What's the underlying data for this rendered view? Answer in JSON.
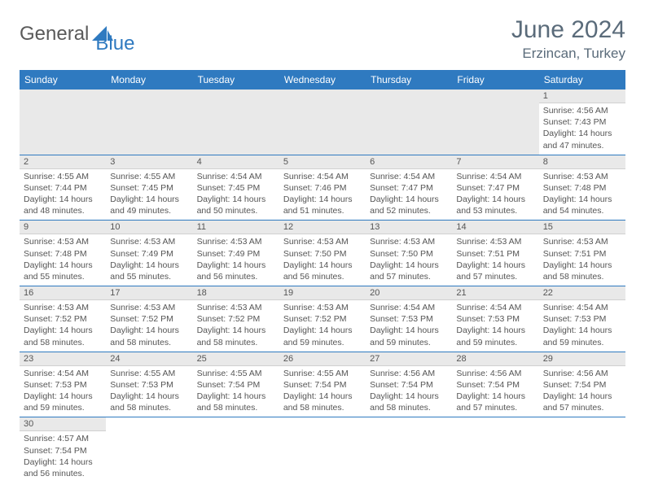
{
  "logo": {
    "general": "General",
    "blue": "Blue"
  },
  "title": "June 2024",
  "location": "Erzincan, Turkey",
  "weekdays": [
    "Sunday",
    "Monday",
    "Tuesday",
    "Wednesday",
    "Thursday",
    "Friday",
    "Saturday"
  ],
  "colors": {
    "header_bg": "#2f7ac0",
    "header_text": "#ffffff",
    "daynum_bg": "#e9e9e9",
    "border": "#2f7ac0",
    "text": "#555555",
    "title_text": "#5a6b7a"
  },
  "grid": [
    [
      null,
      null,
      null,
      null,
      null,
      null,
      {
        "day": "1",
        "sunrise": "Sunrise: 4:56 AM",
        "sunset": "Sunset: 7:43 PM",
        "daylight1": "Daylight: 14 hours",
        "daylight2": "and 47 minutes."
      }
    ],
    [
      {
        "day": "2",
        "sunrise": "Sunrise: 4:55 AM",
        "sunset": "Sunset: 7:44 PM",
        "daylight1": "Daylight: 14 hours",
        "daylight2": "and 48 minutes."
      },
      {
        "day": "3",
        "sunrise": "Sunrise: 4:55 AM",
        "sunset": "Sunset: 7:45 PM",
        "daylight1": "Daylight: 14 hours",
        "daylight2": "and 49 minutes."
      },
      {
        "day": "4",
        "sunrise": "Sunrise: 4:54 AM",
        "sunset": "Sunset: 7:45 PM",
        "daylight1": "Daylight: 14 hours",
        "daylight2": "and 50 minutes."
      },
      {
        "day": "5",
        "sunrise": "Sunrise: 4:54 AM",
        "sunset": "Sunset: 7:46 PM",
        "daylight1": "Daylight: 14 hours",
        "daylight2": "and 51 minutes."
      },
      {
        "day": "6",
        "sunrise": "Sunrise: 4:54 AM",
        "sunset": "Sunset: 7:47 PM",
        "daylight1": "Daylight: 14 hours",
        "daylight2": "and 52 minutes."
      },
      {
        "day": "7",
        "sunrise": "Sunrise: 4:54 AM",
        "sunset": "Sunset: 7:47 PM",
        "daylight1": "Daylight: 14 hours",
        "daylight2": "and 53 minutes."
      },
      {
        "day": "8",
        "sunrise": "Sunrise: 4:53 AM",
        "sunset": "Sunset: 7:48 PM",
        "daylight1": "Daylight: 14 hours",
        "daylight2": "and 54 minutes."
      }
    ],
    [
      {
        "day": "9",
        "sunrise": "Sunrise: 4:53 AM",
        "sunset": "Sunset: 7:48 PM",
        "daylight1": "Daylight: 14 hours",
        "daylight2": "and 55 minutes."
      },
      {
        "day": "10",
        "sunrise": "Sunrise: 4:53 AM",
        "sunset": "Sunset: 7:49 PM",
        "daylight1": "Daylight: 14 hours",
        "daylight2": "and 55 minutes."
      },
      {
        "day": "11",
        "sunrise": "Sunrise: 4:53 AM",
        "sunset": "Sunset: 7:49 PM",
        "daylight1": "Daylight: 14 hours",
        "daylight2": "and 56 minutes."
      },
      {
        "day": "12",
        "sunrise": "Sunrise: 4:53 AM",
        "sunset": "Sunset: 7:50 PM",
        "daylight1": "Daylight: 14 hours",
        "daylight2": "and 56 minutes."
      },
      {
        "day": "13",
        "sunrise": "Sunrise: 4:53 AM",
        "sunset": "Sunset: 7:50 PM",
        "daylight1": "Daylight: 14 hours",
        "daylight2": "and 57 minutes."
      },
      {
        "day": "14",
        "sunrise": "Sunrise: 4:53 AM",
        "sunset": "Sunset: 7:51 PM",
        "daylight1": "Daylight: 14 hours",
        "daylight2": "and 57 minutes."
      },
      {
        "day": "15",
        "sunrise": "Sunrise: 4:53 AM",
        "sunset": "Sunset: 7:51 PM",
        "daylight1": "Daylight: 14 hours",
        "daylight2": "and 58 minutes."
      }
    ],
    [
      {
        "day": "16",
        "sunrise": "Sunrise: 4:53 AM",
        "sunset": "Sunset: 7:52 PM",
        "daylight1": "Daylight: 14 hours",
        "daylight2": "and 58 minutes."
      },
      {
        "day": "17",
        "sunrise": "Sunrise: 4:53 AM",
        "sunset": "Sunset: 7:52 PM",
        "daylight1": "Daylight: 14 hours",
        "daylight2": "and 58 minutes."
      },
      {
        "day": "18",
        "sunrise": "Sunrise: 4:53 AM",
        "sunset": "Sunset: 7:52 PM",
        "daylight1": "Daylight: 14 hours",
        "daylight2": "and 58 minutes."
      },
      {
        "day": "19",
        "sunrise": "Sunrise: 4:53 AM",
        "sunset": "Sunset: 7:52 PM",
        "daylight1": "Daylight: 14 hours",
        "daylight2": "and 59 minutes."
      },
      {
        "day": "20",
        "sunrise": "Sunrise: 4:54 AM",
        "sunset": "Sunset: 7:53 PM",
        "daylight1": "Daylight: 14 hours",
        "daylight2": "and 59 minutes."
      },
      {
        "day": "21",
        "sunrise": "Sunrise: 4:54 AM",
        "sunset": "Sunset: 7:53 PM",
        "daylight1": "Daylight: 14 hours",
        "daylight2": "and 59 minutes."
      },
      {
        "day": "22",
        "sunrise": "Sunrise: 4:54 AM",
        "sunset": "Sunset: 7:53 PM",
        "daylight1": "Daylight: 14 hours",
        "daylight2": "and 59 minutes."
      }
    ],
    [
      {
        "day": "23",
        "sunrise": "Sunrise: 4:54 AM",
        "sunset": "Sunset: 7:53 PM",
        "daylight1": "Daylight: 14 hours",
        "daylight2": "and 59 minutes."
      },
      {
        "day": "24",
        "sunrise": "Sunrise: 4:55 AM",
        "sunset": "Sunset: 7:53 PM",
        "daylight1": "Daylight: 14 hours",
        "daylight2": "and 58 minutes."
      },
      {
        "day": "25",
        "sunrise": "Sunrise: 4:55 AM",
        "sunset": "Sunset: 7:54 PM",
        "daylight1": "Daylight: 14 hours",
        "daylight2": "and 58 minutes."
      },
      {
        "day": "26",
        "sunrise": "Sunrise: 4:55 AM",
        "sunset": "Sunset: 7:54 PM",
        "daylight1": "Daylight: 14 hours",
        "daylight2": "and 58 minutes."
      },
      {
        "day": "27",
        "sunrise": "Sunrise: 4:56 AM",
        "sunset": "Sunset: 7:54 PM",
        "daylight1": "Daylight: 14 hours",
        "daylight2": "and 58 minutes."
      },
      {
        "day": "28",
        "sunrise": "Sunrise: 4:56 AM",
        "sunset": "Sunset: 7:54 PM",
        "daylight1": "Daylight: 14 hours",
        "daylight2": "and 57 minutes."
      },
      {
        "day": "29",
        "sunrise": "Sunrise: 4:56 AM",
        "sunset": "Sunset: 7:54 PM",
        "daylight1": "Daylight: 14 hours",
        "daylight2": "and 57 minutes."
      }
    ],
    [
      {
        "day": "30",
        "sunrise": "Sunrise: 4:57 AM",
        "sunset": "Sunset: 7:54 PM",
        "daylight1": "Daylight: 14 hours",
        "daylight2": "and 56 minutes."
      },
      null,
      null,
      null,
      null,
      null,
      null
    ]
  ]
}
